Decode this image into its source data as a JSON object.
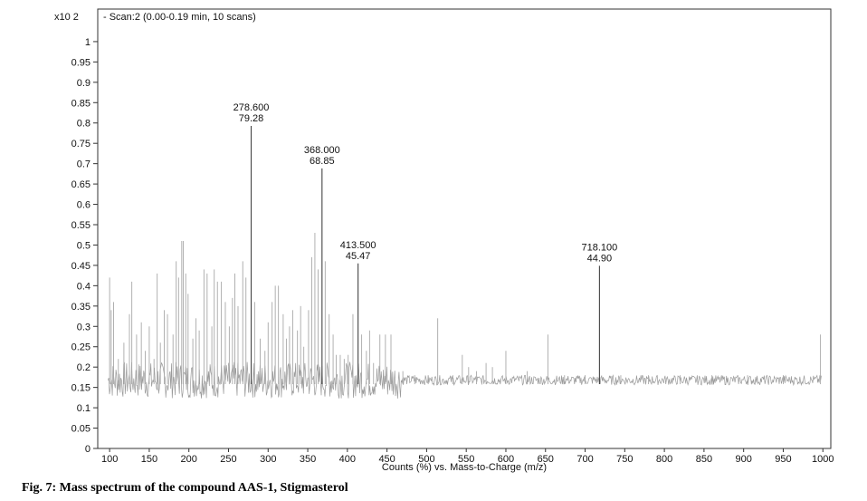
{
  "chart_data": {
    "type": "bar",
    "title": "",
    "scan_info": "- Scan:2 (0.00-0.19 min, 10 scans)",
    "y_exponent_label": "x10 2",
    "xlabel": "Counts (%) vs. Mass-to-Charge (m/z)",
    "ylabel": "",
    "xlim": [
      85,
      1010
    ],
    "ylim": [
      0,
      1.08
    ],
    "x_ticks": [
      100,
      150,
      200,
      250,
      300,
      350,
      400,
      450,
      500,
      550,
      600,
      650,
      700,
      750,
      800,
      850,
      900,
      950,
      1000
    ],
    "y_ticks": [
      0,
      0.05,
      0.1,
      0.15,
      0.2,
      0.25,
      0.3,
      0.35,
      0.4,
      0.45,
      0.5,
      0.55,
      0.6,
      0.65,
      0.7,
      0.75,
      0.8,
      0.85,
      0.9,
      0.95,
      1
    ],
    "y_tick_labels": [
      "0",
      "0.05",
      "0.1",
      "0.15",
      "0.2",
      "0.25",
      "0.3",
      "0.35",
      "0.4",
      "0.45",
      "0.5",
      "0.55",
      "0.6",
      "0.65",
      "0.7",
      "0.75",
      "0.8",
      "0.85",
      "0.9",
      "0.95",
      "1"
    ],
    "baseline": 0.168,
    "peaks": [
      {
        "mz": 100,
        "abundance": 0.42
      },
      {
        "mz": 102,
        "abundance": 0.34
      },
      {
        "mz": 105,
        "abundance": 0.36
      },
      {
        "mz": 111,
        "abundance": 0.22
      },
      {
        "mz": 118,
        "abundance": 0.26
      },
      {
        "mz": 125,
        "abundance": 0.33
      },
      {
        "mz": 128,
        "abundance": 0.41
      },
      {
        "mz": 134,
        "abundance": 0.28
      },
      {
        "mz": 140,
        "abundance": 0.31
      },
      {
        "mz": 145,
        "abundance": 0.24
      },
      {
        "mz": 150,
        "abundance": 0.3
      },
      {
        "mz": 156,
        "abundance": 0.22
      },
      {
        "mz": 160,
        "abundance": 0.43
      },
      {
        "mz": 164,
        "abundance": 0.26
      },
      {
        "mz": 169,
        "abundance": 0.34
      },
      {
        "mz": 173,
        "abundance": 0.33
      },
      {
        "mz": 180,
        "abundance": 0.28
      },
      {
        "mz": 184,
        "abundance": 0.46
      },
      {
        "mz": 187,
        "abundance": 0.42
      },
      {
        "mz": 191,
        "abundance": 0.51
      },
      {
        "mz": 193,
        "abundance": 0.51
      },
      {
        "mz": 196,
        "abundance": 0.43
      },
      {
        "mz": 199,
        "abundance": 0.38
      },
      {
        "mz": 205,
        "abundance": 0.27
      },
      {
        "mz": 209,
        "abundance": 0.32
      },
      {
        "mz": 213,
        "abundance": 0.29
      },
      {
        "mz": 219,
        "abundance": 0.44
      },
      {
        "mz": 223,
        "abundance": 0.43
      },
      {
        "mz": 229,
        "abundance": 0.3
      },
      {
        "mz": 232,
        "abundance": 0.44
      },
      {
        "mz": 236,
        "abundance": 0.41
      },
      {
        "mz": 241,
        "abundance": 0.41
      },
      {
        "mz": 246,
        "abundance": 0.36
      },
      {
        "mz": 251,
        "abundance": 0.3
      },
      {
        "mz": 255,
        "abundance": 0.37
      },
      {
        "mz": 258,
        "abundance": 0.43
      },
      {
        "mz": 262,
        "abundance": 0.35
      },
      {
        "mz": 268,
        "abundance": 0.46
      },
      {
        "mz": 272,
        "abundance": 0.42
      },
      {
        "mz": 278.6,
        "abundance": 0.7928
      },
      {
        "mz": 283,
        "abundance": 0.36
      },
      {
        "mz": 290,
        "abundance": 0.27
      },
      {
        "mz": 296,
        "abundance": 0.24
      },
      {
        "mz": 300,
        "abundance": 0.31
      },
      {
        "mz": 305,
        "abundance": 0.36
      },
      {
        "mz": 309,
        "abundance": 0.4
      },
      {
        "mz": 313,
        "abundance": 0.4
      },
      {
        "mz": 319,
        "abundance": 0.33
      },
      {
        "mz": 323,
        "abundance": 0.27
      },
      {
        "mz": 327,
        "abundance": 0.3
      },
      {
        "mz": 331,
        "abundance": 0.34
      },
      {
        "mz": 337,
        "abundance": 0.29
      },
      {
        "mz": 341,
        "abundance": 0.35
      },
      {
        "mz": 345,
        "abundance": 0.25
      },
      {
        "mz": 351,
        "abundance": 0.34
      },
      {
        "mz": 355,
        "abundance": 0.47
      },
      {
        "mz": 359,
        "abundance": 0.53
      },
      {
        "mz": 363,
        "abundance": 0.44
      },
      {
        "mz": 368,
        "abundance": 0.6885
      },
      {
        "mz": 372,
        "abundance": 0.46
      },
      {
        "mz": 377,
        "abundance": 0.33
      },
      {
        "mz": 382,
        "abundance": 0.28
      },
      {
        "mz": 386,
        "abundance": 0.23
      },
      {
        "mz": 391,
        "abundance": 0.23
      },
      {
        "mz": 396,
        "abundance": 0.22
      },
      {
        "mz": 401,
        "abundance": 0.23
      },
      {
        "mz": 407,
        "abundance": 0.33
      },
      {
        "mz": 413.5,
        "abundance": 0.4547
      },
      {
        "mz": 418,
        "abundance": 0.28
      },
      {
        "mz": 424,
        "abundance": 0.24
      },
      {
        "mz": 428,
        "abundance": 0.29
      },
      {
        "mz": 433,
        "abundance": 0.21
      },
      {
        "mz": 441,
        "abundance": 0.28
      },
      {
        "mz": 448,
        "abundance": 0.28
      },
      {
        "mz": 455,
        "abundance": 0.28
      },
      {
        "mz": 470,
        "abundance": 0.19
      },
      {
        "mz": 485,
        "abundance": 0.18
      },
      {
        "mz": 502,
        "abundance": 0.18
      },
      {
        "mz": 514,
        "abundance": 0.32
      },
      {
        "mz": 533,
        "abundance": 0.18
      },
      {
        "mz": 545,
        "abundance": 0.23
      },
      {
        "mz": 553,
        "abundance": 0.2
      },
      {
        "mz": 563,
        "abundance": 0.19
      },
      {
        "mz": 575,
        "abundance": 0.21
      },
      {
        "mz": 583,
        "abundance": 0.2
      },
      {
        "mz": 600,
        "abundance": 0.24
      },
      {
        "mz": 627,
        "abundance": 0.19
      },
      {
        "mz": 653,
        "abundance": 0.28
      },
      {
        "mz": 674,
        "abundance": 0.18
      },
      {
        "mz": 700,
        "abundance": 0.18
      },
      {
        "mz": 718.1,
        "abundance": 0.449
      },
      {
        "mz": 745,
        "abundance": 0.18
      },
      {
        "mz": 780,
        "abundance": 0.18
      },
      {
        "mz": 820,
        "abundance": 0.18
      },
      {
        "mz": 860,
        "abundance": 0.18
      },
      {
        "mz": 905,
        "abundance": 0.18
      },
      {
        "mz": 950,
        "abundance": 0.18
      },
      {
        "mz": 997,
        "abundance": 0.28
      }
    ],
    "annotations": [
      {
        "mz": 278.6,
        "abundance": 0.7928,
        "mz_text": "278.600",
        "abundance_text": "79.28"
      },
      {
        "mz": 368,
        "abundance": 0.6885,
        "mz_text": "368.000",
        "abundance_text": "68.85"
      },
      {
        "mz": 413.5,
        "abundance": 0.4547,
        "mz_text": "413.500",
        "abundance_text": "45.47"
      },
      {
        "mz": 718.1,
        "abundance": 0.449,
        "mz_text": "718.100",
        "abundance_text": "44.90"
      }
    ]
  },
  "caption": "Fig. 7: Mass spectrum of the compound AAS-1, Stigmasterol"
}
